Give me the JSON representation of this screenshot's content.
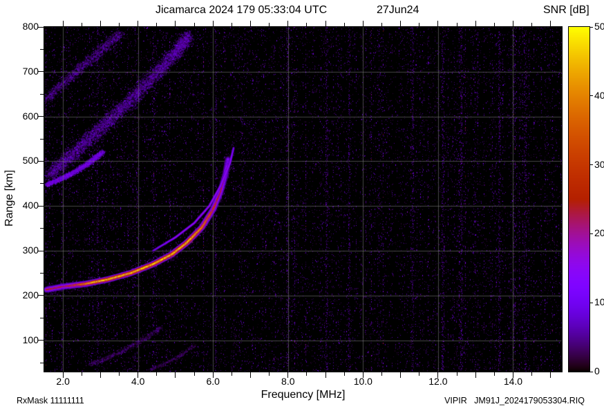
{
  "header": {
    "title": "Jicamarca 2024 179 05:33:04 UTC",
    "date": "27Jun24"
  },
  "colorbar": {
    "label": "SNR [dB]",
    "min": 0,
    "max": 50,
    "tick_labels": [
      "0",
      "10",
      "20",
      "30",
      "40",
      "50"
    ],
    "tick_values": [
      0,
      10,
      20,
      30,
      40,
      50
    ]
  },
  "axes": {
    "x_label": "Frequency [MHz]",
    "y_label": "Range [km]",
    "x_tick_labels": [
      "2.0",
      "4.0",
      "6.0",
      "8.0",
      "10.0",
      "12.0",
      "14.0"
    ],
    "x_tick_values": [
      2,
      4,
      6,
      8,
      10,
      12,
      14
    ],
    "y_tick_labels": [
      "100",
      "200",
      "300",
      "400",
      "500",
      "600",
      "700",
      "800"
    ],
    "y_tick_values": [
      100,
      200,
      300,
      400,
      500,
      600,
      700,
      800
    ]
  },
  "footer": {
    "left": "RxMask 11111111",
    "right": "VIPIR   JM91J_2024179053304.RIQ"
  },
  "chart_data": {
    "type": "heatmap",
    "title": "Jicamarca 2024 179 05:33:04 UTC 27Jun24 (ionogram)",
    "xlabel": "Frequency [MHz]",
    "ylabel": "Range [km]",
    "xlim": [
      1.5,
      15.3
    ],
    "ylim": [
      30,
      800
    ],
    "grid": true,
    "colorbar": {
      "label": "SNR [dB]",
      "range": [
        0,
        50
      ],
      "palette": "gnuplot black-violet-magenta-red-orange-yellow"
    },
    "background_noise_snr_db": [
      0,
      12
    ],
    "rfi_stripes_mhz": [
      2.9,
      6.05,
      7.95,
      9.0,
      9.6,
      11.3,
      12.1,
      12.6,
      13.6,
      14.3
    ],
    "features": [
      {
        "name": "F-layer O-mode echo trace",
        "peak_snr_db": 48,
        "critical_frequency_mhz": 6.4,
        "points_mhz_km": [
          [
            1.55,
            213
          ],
          [
            2.0,
            220
          ],
          [
            2.6,
            226
          ],
          [
            3.2,
            236
          ],
          [
            3.8,
            250
          ],
          [
            4.4,
            270
          ],
          [
            4.9,
            292
          ],
          [
            5.3,
            318
          ],
          [
            5.7,
            352
          ],
          [
            6.0,
            392
          ],
          [
            6.2,
            432
          ],
          [
            6.33,
            470
          ],
          [
            6.4,
            505
          ]
        ]
      },
      {
        "name": "F-layer X-mode echo trace",
        "peak_snr_db": 16,
        "points_mhz_km": [
          [
            4.4,
            300
          ],
          [
            5.0,
            330
          ],
          [
            5.5,
            362
          ],
          [
            5.9,
            400
          ],
          [
            6.2,
            445
          ],
          [
            6.45,
            495
          ],
          [
            6.55,
            530
          ]
        ]
      },
      {
        "name": "spread-F bright streak",
        "peak_snr_db": 22,
        "points_mhz_km": [
          [
            1.55,
            448
          ],
          [
            2.1,
            468
          ],
          [
            2.6,
            492
          ],
          [
            3.05,
            522
          ]
        ]
      },
      {
        "name": "spread-F diffuse band",
        "peak_snr_db": 16,
        "width_km": 55,
        "points_mhz_km": [
          [
            1.6,
            470
          ],
          [
            2.3,
            520
          ],
          [
            3.0,
            575
          ],
          [
            3.7,
            630
          ],
          [
            4.4,
            690
          ],
          [
            5.0,
            745
          ],
          [
            5.35,
            780
          ]
        ]
      },
      {
        "name": "spread-F upper faint band",
        "peak_snr_db": 12,
        "width_km": 35,
        "points_mhz_km": [
          [
            1.55,
            640
          ],
          [
            2.2,
            690
          ],
          [
            2.9,
            740
          ],
          [
            3.5,
            785
          ]
        ]
      },
      {
        "name": "low-range faint echo",
        "peak_snr_db": 9,
        "points_mhz_km": [
          [
            2.7,
            45
          ],
          [
            3.4,
            70
          ],
          [
            4.1,
            100
          ],
          [
            4.6,
            130
          ]
        ]
      },
      {
        "name": "low-range faint echo 2",
        "peak_snr_db": 7,
        "points_mhz_km": [
          [
            4.3,
            35
          ],
          [
            5.0,
            60
          ],
          [
            5.5,
            90
          ]
        ]
      }
    ]
  }
}
